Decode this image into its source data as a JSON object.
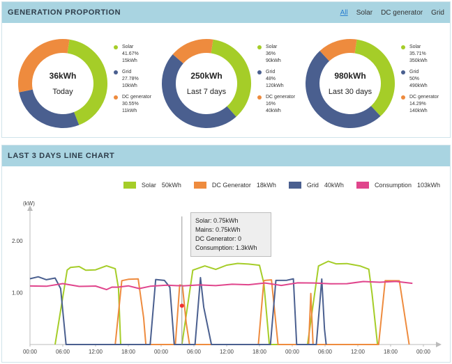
{
  "generation": {
    "title": "GENERATION PROPORTION",
    "filters": [
      "All",
      "Solar",
      "DC generator",
      "Grid"
    ],
    "active_filter": "All",
    "colors": {
      "solar": "#a5cd28",
      "grid": "#4a5f8f",
      "dc": "#ee8b3e"
    },
    "donuts": [
      {
        "value": "36kWh",
        "period": "Today",
        "fractions": [
          0.4167,
          0.2778,
          0.3055
        ],
        "legend": [
          {
            "name": "Solar",
            "pct": "41.67%",
            "kwh": "15kWh"
          },
          {
            "name": "Grid",
            "pct": "27.78%",
            "kwh": "10kWh"
          },
          {
            "name": "DC generator",
            "pct": "30.55%",
            "kwh": "11kWh"
          }
        ]
      },
      {
        "value": "250kWh",
        "period": "Last 7 days",
        "fractions": [
          0.36,
          0.48,
          0.16
        ],
        "legend": [
          {
            "name": "Solar",
            "pct": "36%",
            "kwh": "90kWh"
          },
          {
            "name": "Grid",
            "pct": "48%",
            "kwh": "120kWh"
          },
          {
            "name": "DC generator",
            "pct": "16%",
            "kwh": "40kWh"
          }
        ]
      },
      {
        "value": "980kWh",
        "period": "Last 30 days",
        "fractions": [
          0.3571,
          0.5,
          0.1429
        ],
        "legend": [
          {
            "name": "Solar",
            "pct": "35.71%",
            "kwh": "350kWh"
          },
          {
            "name": "Grid",
            "pct": "50%",
            "kwh": "490kWh"
          },
          {
            "name": "DC generator",
            "pct": "14.29%",
            "kwh": "140kWh"
          }
        ]
      }
    ]
  },
  "linechart": {
    "title": "LAST 3 DAYS LINE CHART",
    "legend": [
      {
        "name": "Solar",
        "value": "50kWh",
        "color": "#a5cd28"
      },
      {
        "name": "DC Generator",
        "value": "18kWh",
        "color": "#ee8b3e"
      },
      {
        "name": "Grid",
        "value": "40kWh",
        "color": "#4a5f8f"
      },
      {
        "name": "Consumption",
        "value": "103kWh",
        "color": "#e0458c"
      }
    ],
    "tooltip": {
      "solar": "Solar: 0.75kWh",
      "mains": "Mains: 0.75kWh",
      "dc": "DC Generator: 0",
      "consumption": "Consumption: 1.3kWh"
    }
  },
  "chart_data": {
    "type": "line",
    "ylabel": "(kW)",
    "ylim": [
      0,
      2.5
    ],
    "yticks": [
      "1.00",
      "2.00"
    ],
    "xticks": [
      "00:00",
      "06:00",
      "12:00",
      "18:00",
      "00:00",
      "06:00",
      "12:00",
      "18:00",
      "00:00",
      "06:00",
      "12:00",
      "18:00",
      "00:00"
    ],
    "x_hours_range": [
      0,
      72
    ],
    "series": [
      {
        "name": "Solar",
        "color": "#a5cd28",
        "points": [
          [
            4.6,
            0
          ],
          [
            6.8,
            1.45
          ],
          [
            7.4,
            1.5
          ],
          [
            9,
            1.5
          ],
          [
            10.2,
            1.45
          ],
          [
            12,
            1.45
          ],
          [
            14,
            1.5
          ],
          [
            15.6,
            1.45
          ],
          [
            16.2,
            1.1
          ],
          [
            16.6,
            0
          ],
          [
            27.8,
            0
          ],
          [
            29.8,
            1.45
          ],
          [
            32,
            1.5
          ],
          [
            34,
            1.45
          ],
          [
            36,
            1.55
          ],
          [
            38,
            1.55
          ],
          [
            40,
            1.55
          ],
          [
            42,
            1.55
          ],
          [
            42.8,
            1.2
          ],
          [
            43.8,
            0
          ],
          [
            50.8,
            0
          ],
          [
            52.8,
            1.5
          ],
          [
            54.6,
            1.6
          ],
          [
            56,
            1.55
          ],
          [
            58,
            1.55
          ],
          [
            60.4,
            1.5
          ],
          [
            62,
            1.45
          ],
          [
            62.6,
            1.0
          ],
          [
            63.6,
            0
          ]
        ]
      },
      {
        "name": "DC Generator",
        "color": "#ee8b3e",
        "points": [
          [
            15.6,
            0
          ],
          [
            16.8,
            1.25
          ],
          [
            18,
            1.25
          ],
          [
            19.8,
            1.25
          ],
          [
            20.8,
            0.5
          ],
          [
            21.2,
            0
          ],
          [
            26.6,
            0
          ],
          [
            27.4,
            1.15
          ],
          [
            27.9,
            1.15
          ],
          [
            28.6,
            0.4
          ],
          [
            29.2,
            0
          ],
          [
            41.8,
            0
          ],
          [
            42.8,
            1.25
          ],
          [
            44.2,
            1.25
          ],
          [
            45,
            0.4
          ],
          [
            45.4,
            0
          ],
          [
            51,
            0
          ],
          [
            51.4,
            1.0
          ],
          [
            51.8,
            0
          ],
          [
            63.8,
            0
          ],
          [
            65,
            1.25
          ],
          [
            67.6,
            1.25
          ],
          [
            68.8,
            0.4
          ],
          [
            69.4,
            0
          ]
        ]
      },
      {
        "name": "Grid",
        "color": "#4a5f8f",
        "points": [
          [
            0,
            1.27
          ],
          [
            1.5,
            1.3
          ],
          [
            3,
            1.27
          ],
          [
            4.6,
            1.3
          ],
          [
            5.6,
            1.1
          ],
          [
            6.6,
            0
          ],
          [
            22,
            0
          ],
          [
            23,
            1.25
          ],
          [
            24.6,
            1.25
          ],
          [
            25.6,
            1.1
          ],
          [
            26.4,
            0
          ],
          [
            30.2,
            0
          ],
          [
            31.2,
            1.3
          ],
          [
            31.8,
            0.7
          ],
          [
            33.2,
            0
          ],
          [
            44,
            0
          ],
          [
            45,
            1.25
          ],
          [
            47,
            1.25
          ],
          [
            48.2,
            1.25
          ],
          [
            48.8,
            0
          ],
          [
            52.4,
            0
          ],
          [
            53.4,
            1.25
          ],
          [
            53.9,
            0.3
          ],
          [
            54.2,
            0
          ]
        ]
      },
      {
        "name": "Consumption",
        "color": "#e0458c",
        "points": [
          [
            0,
            1.13
          ],
          [
            3,
            1.13
          ],
          [
            6,
            1.17
          ],
          [
            9,
            1.13
          ],
          [
            12,
            1.12
          ],
          [
            14,
            1.08
          ],
          [
            15,
            1.12
          ],
          [
            16,
            1.1
          ],
          [
            18,
            1.12
          ],
          [
            20,
            1.1
          ],
          [
            22,
            1.12
          ],
          [
            25,
            1.15
          ],
          [
            28,
            1.13
          ],
          [
            31,
            1.15
          ],
          [
            34,
            1.14
          ],
          [
            37,
            1.16
          ],
          [
            40,
            1.16
          ],
          [
            43,
            1.18
          ],
          [
            46,
            1.15
          ],
          [
            49,
            1.18
          ],
          [
            52,
            1.2
          ],
          [
            55,
            1.16
          ],
          [
            58,
            1.19
          ],
          [
            61,
            1.2
          ],
          [
            64,
            1.22
          ],
          [
            67,
            1.2
          ],
          [
            70,
            1.2
          ]
        ]
      }
    ]
  }
}
